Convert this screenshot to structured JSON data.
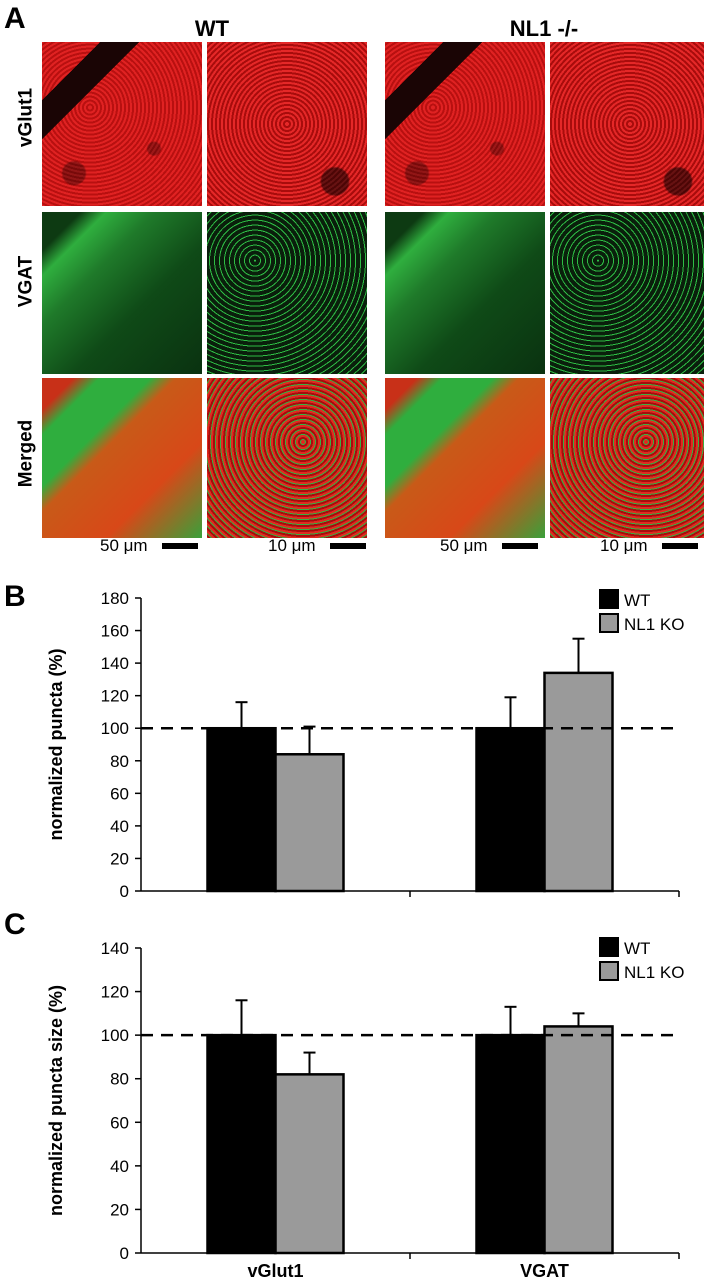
{
  "panel_a": {
    "letter": "A",
    "columns": [
      "WT",
      "NL1 -/-"
    ],
    "rows": [
      "vGlut1",
      "VGAT",
      "Merged"
    ],
    "scale_labels": [
      "50 μm",
      "10 μm",
      "50 μm",
      "10 μm"
    ],
    "colors": {
      "red": "#d81e1e",
      "green": "#27b43c",
      "dark": "#1a0505"
    }
  },
  "chart_data": [
    {
      "type": "bar",
      "panel_letter": "B",
      "categories": [
        "vGlut1",
        "VGAT"
      ],
      "series": [
        {
          "name": "WT",
          "values": [
            100,
            100
          ],
          "errors": [
            16,
            19
          ],
          "color": "#000000"
        },
        {
          "name": "NL1 KO",
          "values": [
            84,
            134
          ],
          "errors": [
            17,
            21
          ],
          "color": "#9a9a9a"
        }
      ],
      "ylabel": "normalized puncta (%)",
      "ylim": [
        0,
        180
      ],
      "yticks": [
        0,
        20,
        40,
        60,
        80,
        100,
        120,
        140,
        160,
        180
      ],
      "reference_line": 100,
      "legend_position": "top-right"
    },
    {
      "type": "bar",
      "panel_letter": "C",
      "categories": [
        "vGlut1",
        "VGAT"
      ],
      "series": [
        {
          "name": "WT",
          "values": [
            100,
            100
          ],
          "errors": [
            16,
            13
          ],
          "color": "#000000"
        },
        {
          "name": "NL1 KO",
          "values": [
            82,
            104
          ],
          "errors": [
            10,
            6
          ],
          "color": "#9a9a9a"
        }
      ],
      "ylabel": "normalized puncta size (%)",
      "ylim": [
        0,
        140
      ],
      "yticks": [
        0,
        20,
        40,
        60,
        80,
        100,
        120,
        140
      ],
      "reference_line": 100,
      "legend_position": "top-right"
    }
  ]
}
